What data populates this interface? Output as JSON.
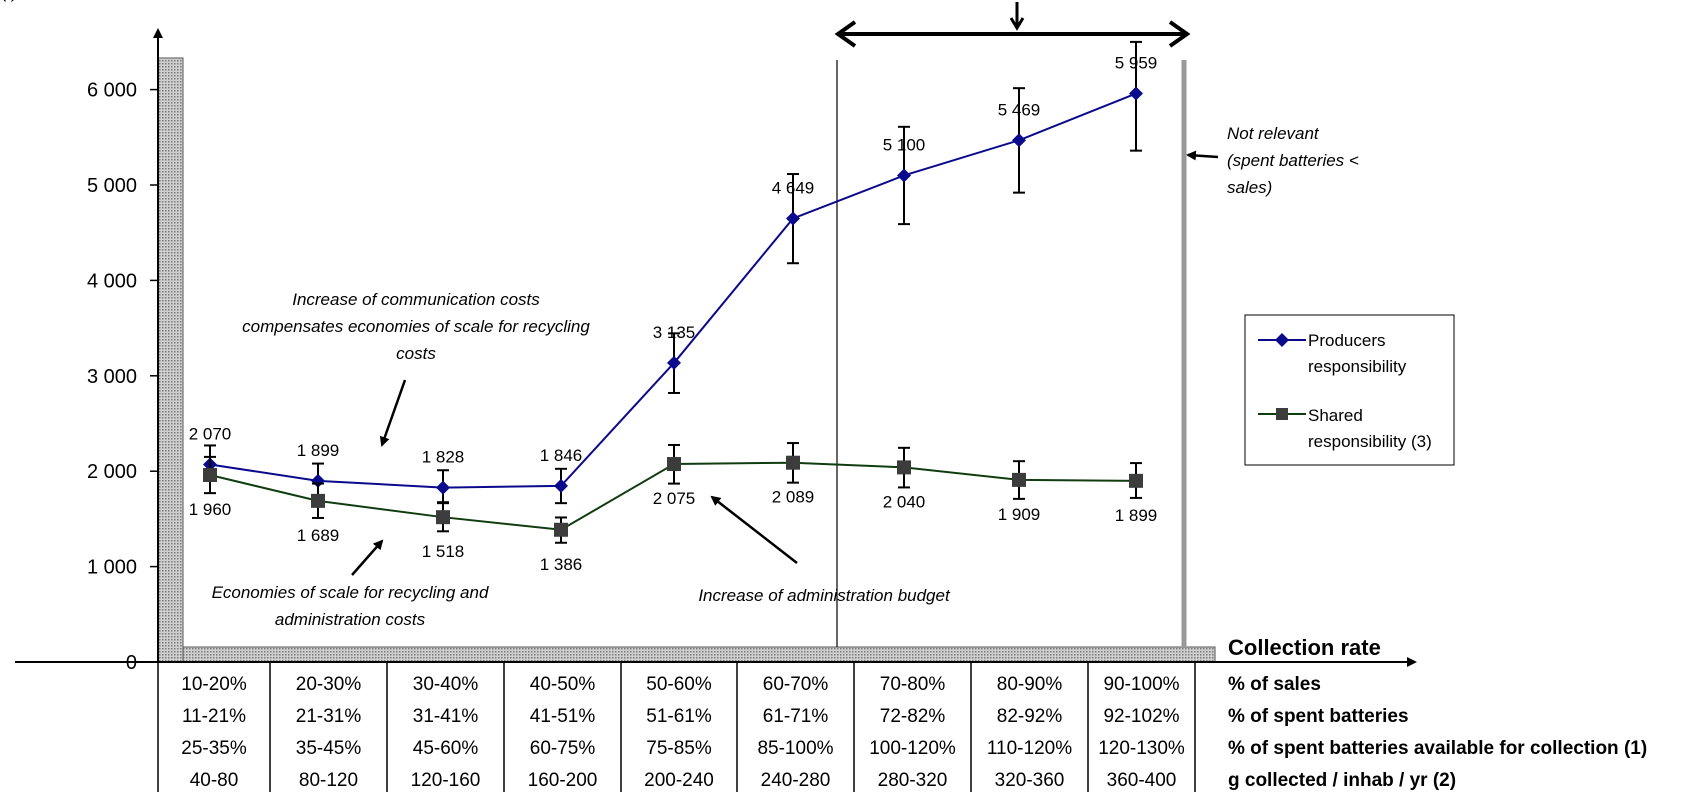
{
  "chart_data": {
    "type": "line",
    "categories": [
      "10-20%",
      "20-30%",
      "30-40%",
      "40-50%",
      "50-60%",
      "60-70%",
      "70-80%",
      "80-90%",
      "90-100%"
    ],
    "series": [
      {
        "name": "Producers responsibility",
        "values": [
          2070,
          1899,
          1828,
          1846,
          3135,
          4649,
          5100,
          5469,
          5959
        ],
        "labels": [
          "2 070",
          "1 899",
          "1 828",
          "1 846",
          "3 135",
          "4 649",
          "5 100",
          "5 469",
          "5 959"
        ],
        "err_low": [
          1920,
          1730,
          1665,
          1665,
          2820,
          4180,
          4590,
          4920,
          5360
        ],
        "err_high": [
          2270,
          2080,
          2010,
          2025,
          3445,
          5115,
          5610,
          6015,
          6500
        ],
        "color": "#0a0a8c"
      },
      {
        "name": "Shared responsibility (3)",
        "values": [
          1960,
          1689,
          1518,
          1386,
          2075,
          2089,
          2040,
          1909,
          1899
        ],
        "labels": [
          "1 960",
          "1 689",
          "1 518",
          "1 386",
          "2 075",
          "2 089",
          "2 040",
          "1 909",
          "1 899"
        ],
        "err_low": [
          1770,
          1510,
          1370,
          1250,
          1870,
          1880,
          1830,
          1710,
          1720
        ],
        "err_high": [
          2150,
          1870,
          1675,
          1515,
          2275,
          2295,
          2245,
          2105,
          2085
        ],
        "color": "#0f3d0f"
      }
    ],
    "y_ticks": [
      {
        "value": 0,
        "label": "0"
      },
      {
        "value": 1000,
        "label": "1 000"
      },
      {
        "value": 2000,
        "label": "2 000"
      },
      {
        "value": 3000,
        "label": "3 000"
      },
      {
        "value": 4000,
        "label": "4 000"
      },
      {
        "value": 5000,
        "label": "5 000"
      },
      {
        "value": 6000,
        "label": "6 000"
      }
    ],
    "ylim": [
      0,
      6500
    ],
    "xlabel": "Collection rate",
    "legend_position": "right",
    "table_rows": [
      {
        "label": "% of sales",
        "suffix": "",
        "cells": [
          "10-20%",
          "20-30%",
          "30-40%",
          "40-50%",
          "50-60%",
          "60-70%",
          "70-80%",
          "80-90%",
          "90-100%"
        ]
      },
      {
        "label": "% of spent batteries",
        "suffix": "",
        "cells": [
          "11-21%",
          "21-31%",
          "31-41%",
          "41-51%",
          "51-61%",
          "61-71%",
          "72-82%",
          "82-92%",
          "92-102%"
        ]
      },
      {
        "label": "% of spent batteries available for collection",
        "suffix": " (1)",
        "cells": [
          "25-35%",
          "35-45%",
          "45-60%",
          "60-75%",
          "75-85%",
          "85-100%",
          "100-120%",
          "110-120%",
          "120-130%"
        ]
      },
      {
        "label": "g collected / inhab / yr",
        "suffix": " (2)",
        "cells": [
          "40-80",
          "80-120",
          "120-160",
          "160-200",
          "200-240",
          "240-280",
          "280-320",
          "320-360",
          "360-400"
        ]
      }
    ],
    "annotations": {
      "top_left_fragment": "(                    )",
      "communication": [
        "Increase of communication costs",
        "compensates economies of scale for recycling",
        "costs"
      ],
      "economies": [
        "Economies of scale for recycling and",
        "administration costs"
      ],
      "administration": [
        "Increase of administration budget"
      ],
      "not_relevant": [
        "Not relevant",
        "(spent batteries <",
        "sales)"
      ]
    }
  }
}
